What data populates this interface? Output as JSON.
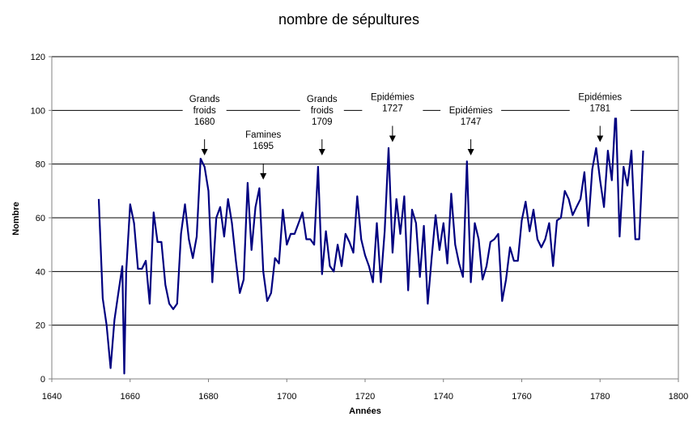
{
  "chart_data": {
    "type": "line",
    "title": "nombre de sépultures",
    "xlabel": "Années",
    "ylabel": "Nombre",
    "xlim": [
      1640,
      1800
    ],
    "ylim": [
      0,
      120
    ],
    "xticks": [
      1640,
      1660,
      1680,
      1700,
      1720,
      1740,
      1760,
      1780,
      1800
    ],
    "yticks": [
      0,
      20,
      40,
      60,
      80,
      100,
      120
    ],
    "grid": "horizontal",
    "legend": "none",
    "colors": {
      "line": "#000080",
      "grid": "#000000",
      "axis": "#808080"
    },
    "series": [
      {
        "points": [
          [
            1652,
            67
          ],
          [
            1653,
            30
          ],
          [
            1654,
            20
          ],
          [
            1655,
            4
          ],
          [
            1656,
            22
          ],
          [
            1657,
            32
          ],
          [
            1658,
            42
          ],
          [
            1658.5,
            2
          ],
          [
            1659,
            40
          ],
          [
            1660,
            65
          ],
          [
            1661,
            58
          ],
          [
            1662,
            41
          ],
          [
            1663,
            41
          ],
          [
            1664,
            44
          ],
          [
            1665,
            28
          ],
          [
            1666,
            62
          ],
          [
            1667,
            51
          ],
          [
            1668,
            51
          ],
          [
            1669,
            35
          ],
          [
            1670,
            28
          ],
          [
            1671,
            26
          ],
          [
            1672,
            28
          ],
          [
            1673,
            54
          ],
          [
            1674,
            65
          ],
          [
            1675,
            52
          ],
          [
            1676,
            45
          ],
          [
            1677,
            53
          ],
          [
            1678,
            82
          ],
          [
            1679,
            79
          ],
          [
            1680,
            70
          ],
          [
            1681,
            36
          ],
          [
            1682,
            60
          ],
          [
            1683,
            64
          ],
          [
            1684,
            53
          ],
          [
            1685,
            67
          ],
          [
            1686,
            58
          ],
          [
            1687,
            44
          ],
          [
            1688,
            32
          ],
          [
            1689,
            37
          ],
          [
            1690,
            73
          ],
          [
            1691,
            48
          ],
          [
            1692,
            64
          ],
          [
            1693,
            71
          ],
          [
            1694,
            40
          ],
          [
            1695,
            29
          ],
          [
            1696,
            32
          ],
          [
            1697,
            45
          ],
          [
            1698,
            43
          ],
          [
            1699,
            63
          ],
          [
            1700,
            50
          ],
          [
            1701,
            54
          ],
          [
            1702,
            54
          ],
          [
            1703,
            58
          ],
          [
            1704,
            62
          ],
          [
            1705,
            52
          ],
          [
            1706,
            52
          ],
          [
            1707,
            50
          ],
          [
            1708,
            79
          ],
          [
            1709,
            39
          ],
          [
            1710,
            55
          ],
          [
            1711,
            42
          ],
          [
            1712,
            40
          ],
          [
            1713,
            50
          ],
          [
            1714,
            42
          ],
          [
            1715,
            54
          ],
          [
            1716,
            51
          ],
          [
            1717,
            47
          ],
          [
            1718,
            68
          ],
          [
            1719,
            52
          ],
          [
            1720,
            46
          ],
          [
            1721,
            42
          ],
          [
            1722,
            36
          ],
          [
            1723,
            58
          ],
          [
            1724,
            36
          ],
          [
            1725,
            55
          ],
          [
            1726,
            86
          ],
          [
            1727,
            47
          ],
          [
            1728,
            67
          ],
          [
            1729,
            54
          ],
          [
            1730,
            68
          ],
          [
            1731,
            33
          ],
          [
            1732,
            63
          ],
          [
            1733,
            58
          ],
          [
            1734,
            38
          ],
          [
            1735,
            57
          ],
          [
            1736,
            28
          ],
          [
            1737,
            45
          ],
          [
            1738,
            61
          ],
          [
            1739,
            48
          ],
          [
            1740,
            58
          ],
          [
            1741,
            43
          ],
          [
            1742,
            69
          ],
          [
            1743,
            50
          ],
          [
            1744,
            43
          ],
          [
            1745,
            38
          ],
          [
            1746,
            81
          ],
          [
            1747,
            36
          ],
          [
            1748,
            58
          ],
          [
            1749,
            52
          ],
          [
            1750,
            37
          ],
          [
            1751,
            42
          ],
          [
            1752,
            51
          ],
          [
            1753,
            52
          ],
          [
            1754,
            54
          ],
          [
            1755,
            29
          ],
          [
            1756,
            37
          ],
          [
            1757,
            49
          ],
          [
            1758,
            44
          ],
          [
            1759,
            44
          ],
          [
            1760,
            59
          ],
          [
            1761,
            66
          ],
          [
            1762,
            55
          ],
          [
            1763,
            63
          ],
          [
            1764,
            52
          ],
          [
            1765,
            49
          ],
          [
            1766,
            52
          ],
          [
            1767,
            58
          ],
          [
            1768,
            42
          ],
          [
            1769,
            59
          ],
          [
            1770,
            60
          ],
          [
            1771,
            70
          ],
          [
            1772,
            67
          ],
          [
            1773,
            61
          ],
          [
            1774,
            64
          ],
          [
            1775,
            67
          ],
          [
            1776,
            77
          ],
          [
            1777,
            57
          ],
          [
            1778,
            78
          ],
          [
            1779,
            86
          ],
          [
            1780,
            74
          ],
          [
            1781,
            64
          ],
          [
            1782,
            85
          ],
          [
            1783,
            74
          ],
          [
            1784,
            101
          ],
          [
            1785,
            53
          ],
          [
            1786,
            79
          ],
          [
            1787,
            72
          ],
          [
            1788,
            85
          ],
          [
            1789,
            52
          ],
          [
            1790,
            52
          ],
          [
            1791,
            85
          ]
        ]
      }
    ],
    "annotations": [
      {
        "lines": [
          "Grands",
          "froids",
          "1680"
        ],
        "x": 1679,
        "y": 82
      },
      {
        "lines": [
          "Famines",
          "1695"
        ],
        "x": 1694,
        "y": 73
      },
      {
        "lines": [
          "Grands",
          "froids",
          "1709"
        ],
        "x": 1709,
        "y": 82
      },
      {
        "lines": [
          "Epidémies",
          "1727"
        ],
        "x": 1727,
        "y": 87
      },
      {
        "lines": [
          "Epidémies",
          "1747"
        ],
        "x": 1747,
        "y": 82
      },
      {
        "lines": [
          "Epidémies",
          "1781"
        ],
        "x": 1780,
        "y": 87
      }
    ]
  }
}
